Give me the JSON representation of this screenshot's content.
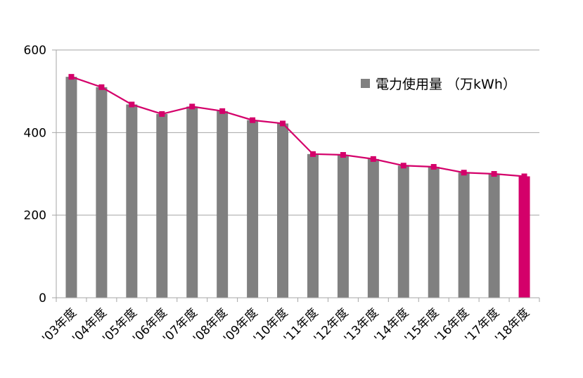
{
  "chart_data": {
    "type": "bar",
    "categories": [
      "'03年度",
      "'04年度",
      "'05年度",
      "'06年度",
      "'07年度",
      "'08年度",
      "'09年度",
      "'10年度",
      "'11年度",
      "'12年度",
      "'13年度",
      "'14年度",
      "'15年度",
      "'16年度",
      "'17年度",
      "'18年度"
    ],
    "series": [
      {
        "name": "電力使用量 （万kWh）",
        "type": "bar",
        "values": [
          535,
          510,
          468,
          445,
          463,
          452,
          430,
          422,
          348,
          346,
          336,
          320,
          317,
          303,
          300,
          294
        ],
        "color": "#808080",
        "highlight_last_color": "#d4006a"
      },
      {
        "type": "line",
        "values": [
          535,
          510,
          468,
          445,
          463,
          452,
          430,
          422,
          348,
          346,
          336,
          320,
          317,
          303,
          300,
          294
        ],
        "color": "#d4006a"
      }
    ],
    "yticks": [
      0,
      200,
      400,
      600
    ],
    "ylim": [
      0,
      600
    ],
    "grid": "horizontal",
    "legend_position": "top-right"
  }
}
